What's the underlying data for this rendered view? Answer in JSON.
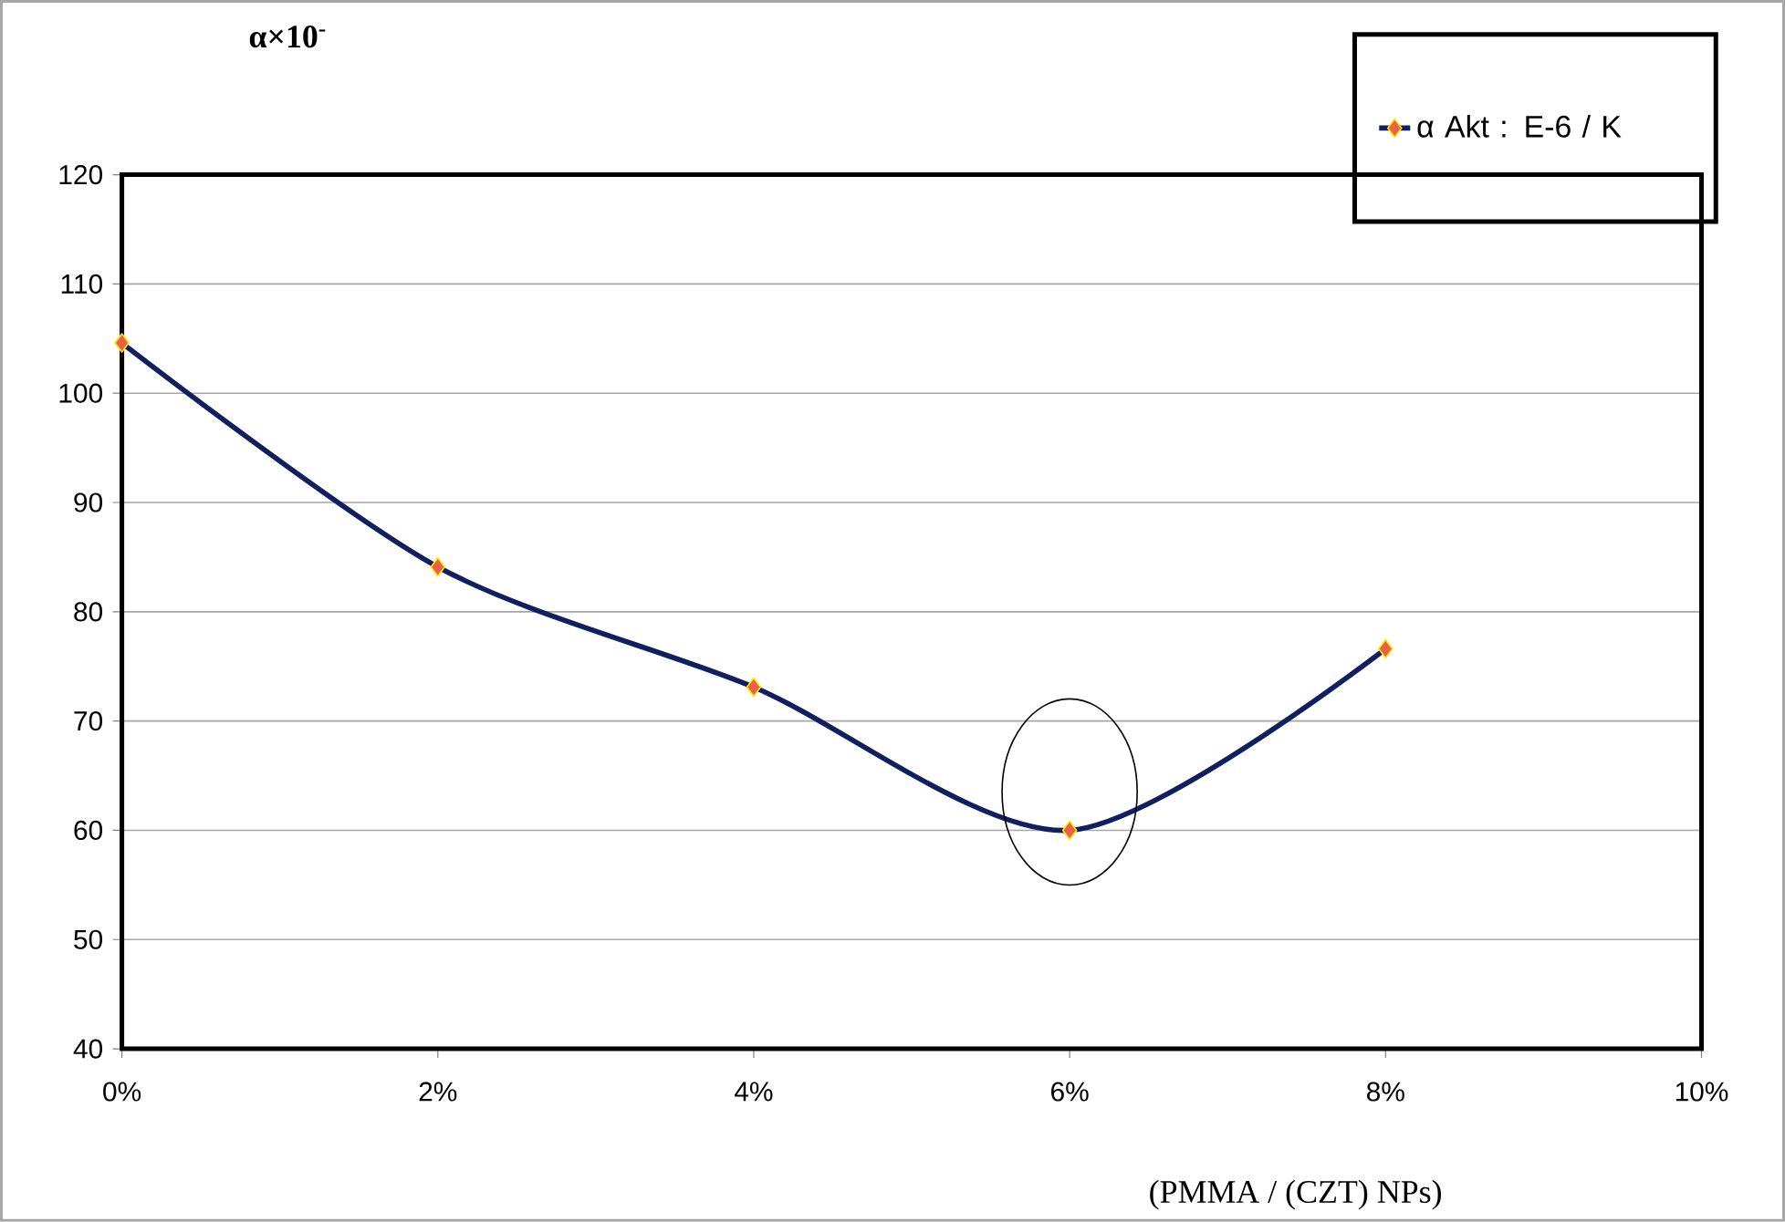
{
  "chart_data": {
    "type": "line",
    "xlabel": "(PMMA / (CZT) NPs)",
    "ylabel": "α×10$^{-}$",
    "x": [
      0,
      2,
      4,
      6,
      8
    ],
    "series": [
      {
        "name": "α Akt : E-6 / K",
        "color": "#0f1f5f",
        "values": [
          104.6,
          84.1,
          73.1,
          60.0,
          76.6
        ]
      }
    ],
    "xlim": [
      0,
      10
    ],
    "xticks": [
      {
        "value": 0,
        "label": "0%"
      },
      {
        "value": 2,
        "label": "2%"
      },
      {
        "value": 4,
        "label": "4%"
      },
      {
        "value": 6,
        "label": "6%"
      },
      {
        "value": 8,
        "label": "8%"
      },
      {
        "value": 10,
        "label": "10%"
      }
    ],
    "ylim": [
      40,
      120
    ],
    "yticks": [
      40,
      50,
      60,
      70,
      80,
      90,
      100,
      110,
      120
    ],
    "grid": "y",
    "legend": "top right",
    "marker": "diamond",
    "line_style": "solid"
  }
}
